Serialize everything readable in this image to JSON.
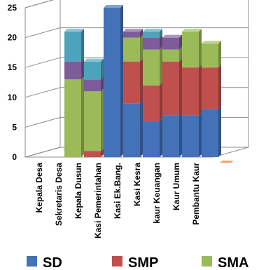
{
  "chart_data": {
    "type": "bar",
    "stacked": true,
    "projection": "3d",
    "categories": [
      "Kepala Desa",
      "Sekretaris Desa",
      "Kepala Dusun",
      "Kasi Pemerintahan",
      "Kasi Ek.Bang.",
      "Kasi Kesra",
      "kaur Keuangan",
      "Kaur Umum",
      "Pembantu Kaur"
    ],
    "series": [
      {
        "name": "SD",
        "color": "#4472b8",
        "values": [
          0,
          0,
          0,
          25,
          9,
          6,
          7,
          7,
          8
        ]
      },
      {
        "name": "SMP",
        "color": "#c0504d",
        "values": [
          0,
          0,
          1,
          0,
          7,
          6,
          9,
          8,
          7
        ]
      },
      {
        "name": "SMA",
        "color": "#9bbb59",
        "values": [
          0,
          13,
          10,
          0,
          4,
          6,
          2,
          6,
          4
        ]
      },
      {
        "name": "",
        "color": "#7e5c9a",
        "values": [
          0,
          3,
          2,
          0,
          1,
          2,
          2,
          0,
          0
        ]
      },
      {
        "name": "",
        "color": "#4ba4bc",
        "values": [
          0,
          5,
          3,
          0,
          0,
          1,
          0,
          0,
          0
        ]
      }
    ],
    "yticks": [
      0,
      5,
      10,
      15,
      20,
      25
    ],
    "ylim": [
      0,
      25
    ],
    "grid": true,
    "legend_position": "bottom",
    "title": "",
    "xlabel": "",
    "ylabel": ""
  }
}
